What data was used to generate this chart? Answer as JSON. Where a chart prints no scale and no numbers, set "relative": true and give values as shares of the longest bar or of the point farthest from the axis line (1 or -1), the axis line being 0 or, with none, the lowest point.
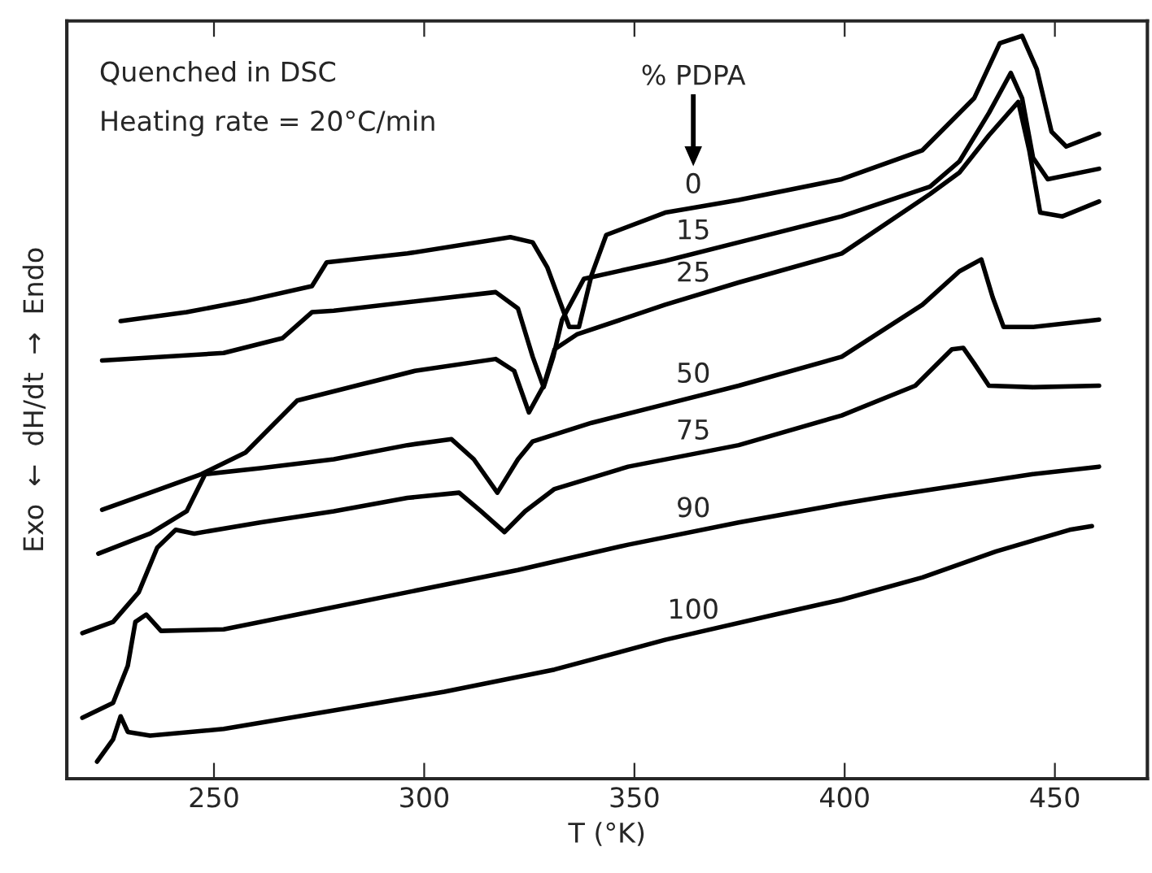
{
  "chart_data": {
    "type": "line",
    "relative": true,
    "xlabel": "T (°K)",
    "ylabel": "Exo  ←  dH/dt  →  Endo",
    "legend_title": "% PDPA",
    "annotations": [
      "Quenched in DSC",
      "Heating rate = 20°C/min"
    ],
    "xlim": [
      215,
      472
    ],
    "xticks": [
      250,
      300,
      350,
      400,
      450
    ],
    "grid": false,
    "legend": false,
    "series": [
      {
        "name": "0",
        "color": "#000000",
        "x": [
          227.8,
          243.5,
          257.5,
          273.3,
          276.8,
          296.0,
          320.5,
          325.8,
          329.3,
          334.5,
          336.8,
          339.8,
          343.3,
          357.3,
          374.8,
          399.3,
          418.5,
          430.8,
          436.9,
          442.2,
          445.7,
          449.2,
          452.7,
          460.5
        ],
        "values": [
          0.616,
          0.628,
          0.643,
          0.663,
          0.695,
          0.707,
          0.729,
          0.722,
          0.688,
          0.608,
          0.608,
          0.678,
          0.732,
          0.762,
          0.779,
          0.807,
          0.846,
          0.916,
          0.99,
          1.0,
          0.955,
          0.871,
          0.851,
          0.868
        ]
      },
      {
        "name": "15",
        "color": "#000000",
        "x": [
          223.4,
          252.3,
          266.3,
          273.3,
          278.5,
          317.0,
          322.3,
          325.8,
          328.4,
          330.7,
          332.8,
          338.0,
          357.3,
          374.8,
          399.3,
          420.3,
          427.3,
          434.3,
          439.5,
          442.2,
          444.8,
          448.3,
          460.5
        ],
        "values": [
          0.563,
          0.573,
          0.593,
          0.628,
          0.63,
          0.655,
          0.633,
          0.568,
          0.527,
          0.568,
          0.618,
          0.673,
          0.697,
          0.722,
          0.757,
          0.797,
          0.831,
          0.896,
          0.95,
          0.916,
          0.836,
          0.807,
          0.821
        ]
      },
      {
        "name": "25",
        "color": "#000000",
        "x": [
          223.4,
          234.8,
          247.0,
          257.5,
          264.5,
          269.8,
          283.8,
          297.8,
          317.0,
          321.4,
          324.9,
          328.4,
          331.0,
          336.3,
          357.3,
          374.8,
          399.3,
          420.3,
          427.3,
          434.3,
          441.3,
          443.9,
          446.5,
          451.8,
          460.5
        ],
        "values": [
          0.362,
          0.385,
          0.41,
          0.439,
          0.479,
          0.509,
          0.529,
          0.549,
          0.565,
          0.549,
          0.493,
          0.529,
          0.578,
          0.598,
          0.638,
          0.668,
          0.707,
          0.787,
          0.816,
          0.866,
          0.911,
          0.846,
          0.762,
          0.757,
          0.777
        ]
      },
      {
        "name": "50",
        "color": "#000000",
        "x": [
          222.5,
          234.8,
          243.5,
          247.9,
          261.0,
          278.5,
          296.0,
          306.5,
          311.8,
          317.4,
          322.3,
          325.8,
          339.8,
          357.3,
          374.8,
          399.3,
          418.5,
          427.3,
          432.5,
          435.2,
          437.8,
          444.8,
          460.5
        ],
        "values": [
          0.303,
          0.33,
          0.36,
          0.41,
          0.418,
          0.43,
          0.449,
          0.457,
          0.43,
          0.385,
          0.43,
          0.454,
          0.479,
          0.504,
          0.529,
          0.568,
          0.638,
          0.683,
          0.699,
          0.648,
          0.608,
          0.608,
          0.618
        ]
      },
      {
        "name": "75",
        "color": "#000000",
        "x": [
          218.7,
          226.0,
          232.1,
          236.5,
          240.9,
          245.3,
          261.0,
          278.5,
          296.0,
          308.3,
          313.5,
          319.1,
          324.0,
          331.0,
          348.5,
          374.8,
          399.3,
          416.8,
          425.5,
          428.2,
          430.8,
          434.3,
          444.8,
          460.5
        ],
        "values": [
          0.196,
          0.211,
          0.251,
          0.311,
          0.335,
          0.33,
          0.345,
          0.36,
          0.378,
          0.385,
          0.36,
          0.332,
          0.36,
          0.39,
          0.42,
          0.449,
          0.489,
          0.529,
          0.578,
          0.58,
          0.559,
          0.529,
          0.527,
          0.529
        ]
      },
      {
        "name": "90",
        "color": "#000000",
        "x": [
          218.7,
          226.0,
          229.5,
          231.3,
          233.9,
          237.4,
          252.3,
          269.8,
          296.0,
          322.3,
          348.5,
          374.8,
          399.3,
          409.8,
          427.3,
          444.8,
          460.5
        ],
        "values": [
          0.082,
          0.102,
          0.152,
          0.211,
          0.221,
          0.199,
          0.201,
          0.221,
          0.251,
          0.281,
          0.315,
          0.345,
          0.37,
          0.38,
          0.395,
          0.41,
          0.42
        ]
      },
      {
        "name": "100",
        "color": "#000000",
        "x": [
          222.2,
          226.0,
          227.8,
          229.5,
          234.8,
          252.3,
          278.5,
          304.8,
          331.0,
          357.3,
          383.5,
          399.3,
          418.5,
          436.0,
          453.5,
          458.8
        ],
        "values": [
          0.023,
          0.053,
          0.084,
          0.063,
          0.058,
          0.067,
          0.092,
          0.117,
          0.147,
          0.187,
          0.221,
          0.241,
          0.271,
          0.306,
          0.335,
          0.34
        ]
      }
    ]
  }
}
